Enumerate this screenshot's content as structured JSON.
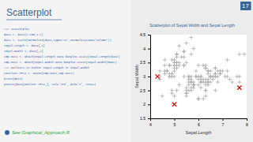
{
  "chart_data": {
    "type": "scatter",
    "title": "Scatterplot of Sepal Width and Sepal Length",
    "xlabel": "Sepal.Length",
    "ylabel": "Sepal.Width",
    "annotations": [
      "Scatterplot",
      "17",
      "### scatterplot",
      "data <- data[1:100,1:2]",
      "data <- scale(normalise(data,type='nt',normalisation='column'))",
      "Sepal.Length <- data[,1]",
      "Sepal.Width <- data[,2]",
      "cmp.out1 <- which(Sepal.Length %in% boxplot.stats(Sepal.Length)$out)",
      "cmp.out2 <- which(Sepal.Width %in% boxplot.stats(Sepal.Width)$out)",
      "### outliers in either Sepal.Length or Sepal.Width",
      "coutlier.TF14 <- union(cmp.out1,cmp.out2)",
      "print(data)",
      "points(data[outlier.TF14,], col='red', pch='x', cex=2)",
      "See Graphical_Approach.R"
    ],
    "xlim": [
      4.0,
      8.0
    ],
    "ylim": [
      1.5,
      4.5
    ],
    "xticks": [
      4,
      5,
      6,
      7,
      8
    ],
    "yticks": [
      1.5,
      2,
      2.5,
      3,
      3.5,
      4,
      4.5
    ],
    "series": [
      {
        "color": "#aaaaaa",
        "marker": "+",
        "x": [
          5.1,
          4.9,
          4.7,
          4.6,
          5.0,
          5.4,
          4.6,
          5.0,
          4.4,
          4.9,
          5.4,
          4.8,
          4.8,
          5.8,
          5.7,
          5.4,
          5.1,
          5.7,
          5.1,
          5.4,
          5.1,
          4.6,
          5.1,
          4.8,
          5.0,
          5.0,
          5.2,
          5.2,
          4.7,
          4.8,
          5.4,
          5.2,
          5.5,
          4.9,
          5.0,
          5.5,
          4.9,
          4.4,
          5.1,
          5.0,
          4.5,
          4.4,
          5.0,
          5.1,
          4.8,
          5.1,
          4.6,
          5.3,
          5.0,
          7.0,
          6.4,
          6.9,
          5.5,
          6.5,
          5.7,
          6.3,
          4.9,
          6.6,
          5.2,
          5.9,
          6.0,
          6.1,
          5.6,
          6.7,
          5.6,
          5.8,
          6.2,
          5.6,
          5.9,
          6.1,
          6.3,
          6.1,
          6.4,
          6.6,
          6.8,
          6.7,
          6.0,
          5.7,
          5.5,
          5.5,
          5.8,
          6.0,
          5.4,
          6.0,
          6.7,
          6.3,
          5.6,
          5.5,
          5.5,
          6.1,
          5.8,
          5.0,
          5.6,
          5.7,
          5.7,
          6.2,
          5.1,
          5.7,
          6.3,
          5.8,
          7.1,
          6.3,
          6.5,
          7.6,
          4.9,
          7.3,
          6.7,
          7.2,
          6.5,
          6.4,
          6.8,
          5.7,
          5.8,
          6.4,
          6.5,
          7.7,
          6.0,
          6.9,
          5.6,
          7.7,
          6.3,
          6.7,
          7.2,
          6.2,
          6.1,
          6.4,
          7.2,
          7.4,
          7.9,
          6.4,
          6.3,
          6.1,
          7.7,
          6.3,
          6.4,
          6.0,
          6.9,
          6.7,
          6.9,
          5.8,
          6.8,
          6.7,
          6.7,
          6.3,
          6.5,
          6.2,
          5.9
        ],
        "values": [
          3.5,
          3.0,
          3.2,
          3.1,
          3.6,
          3.9,
          3.4,
          3.4,
          2.9,
          3.1,
          3.7,
          3.4,
          3.0,
          4.0,
          4.4,
          3.9,
          3.5,
          3.8,
          3.8,
          3.4,
          3.7,
          3.6,
          3.3,
          3.4,
          3.0,
          3.4,
          3.5,
          3.4,
          3.2,
          3.1,
          3.4,
          4.1,
          4.2,
          3.1,
          3.2,
          3.5,
          3.6,
          3.0,
          3.4,
          3.5,
          2.3,
          3.2,
          3.5,
          3.8,
          3.0,
          3.8,
          3.2,
          3.7,
          3.3,
          3.2,
          3.2,
          3.1,
          2.3,
          2.8,
          2.8,
          3.3,
          2.4,
          2.9,
          2.7,
          3.0,
          2.2,
          2.9,
          2.9,
          3.1,
          3.0,
          2.7,
          2.2,
          2.5,
          3.2,
          2.8,
          2.5,
          2.8,
          2.9,
          3.0,
          2.8,
          3.0,
          2.9,
          2.6,
          2.4,
          2.4,
          2.7,
          2.7,
          3.0,
          3.4,
          3.1,
          2.3,
          3.0,
          2.5,
          2.6,
          3.0,
          2.6,
          2.3,
          2.7,
          3.0,
          2.9,
          2.9,
          2.5,
          2.8,
          3.3,
          2.7,
          3.0,
          2.9,
          3.0,
          3.0,
          2.5,
          2.9,
          2.5,
          3.6,
          3.2,
          2.7,
          3.0,
          2.5,
          2.8,
          3.2,
          3.0,
          3.8,
          2.2,
          3.2,
          2.8,
          2.8,
          2.7,
          3.3,
          3.2,
          2.8,
          3.0,
          2.8,
          3.0,
          2.8,
          3.8,
          2.8,
          2.8,
          2.6,
          3.0,
          3.4,
          3.1,
          3.0,
          3.1,
          3.1,
          3.1,
          2.7,
          3.2,
          3.3,
          3.0,
          2.5,
          3.0,
          3.4,
          3.0
        ]
      },
      {
        "color": "#cc0000",
        "marker": "x",
        "x": [
          5.0,
          4.3,
          7.7
        ],
        "values": [
          2.0,
          3.0,
          2.6
        ]
      }
    ]
  }
}
